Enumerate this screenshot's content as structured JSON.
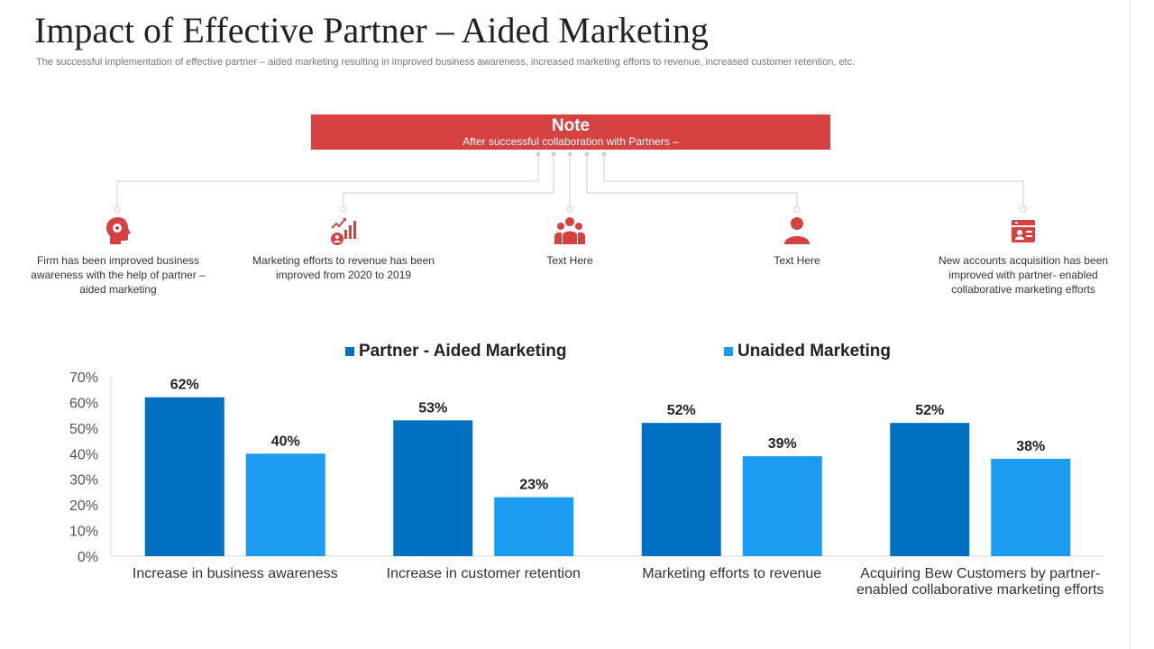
{
  "header": {
    "title": "Impact of Effective Partner – Aided Marketing",
    "subtitle": "The successful implementation of effective partner – aided marketing resulting in improved business awareness, increased marketing efforts to revenue, increased customer retention, etc."
  },
  "note": {
    "title": "Note",
    "text": "After successful collaboration with Partners –"
  },
  "features": [
    {
      "icon": "head-gear-icon",
      "text": "Firm has been improved  business awareness  with the help of partner – aided marketing"
    },
    {
      "icon": "growth-chart-icon",
      "text": "Marketing efforts to revenue  has been improved  from 2020 to 2019"
    },
    {
      "icon": "team-icon",
      "text": "Text Here"
    },
    {
      "icon": "person-icon",
      "text": "Text Here"
    },
    {
      "icon": "id-card-icon",
      "text": "New accounts acquisition has been improved  with partner- enabled collaborative  marketing efforts"
    }
  ],
  "colors": {
    "accent_red": "#d64242",
    "partner_blue": "#0070c0",
    "unaided_blue": "#1b9cf0"
  },
  "chart_data": {
    "type": "bar",
    "categories": [
      "Increase in business awareness",
      "Increase in customer retention",
      "Marketing efforts to revenue",
      "Acquiring Bew Customers by partner-enabled collaborative marketing efforts"
    ],
    "category_lines": [
      [
        "Increase in business awareness"
      ],
      [
        "Increase in customer retention"
      ],
      [
        "Marketing efforts to revenue"
      ],
      [
        "Acquiring Bew Customers by partner-",
        "enabled collaborative marketing efforts"
      ]
    ],
    "series": [
      {
        "name": "Partner - Aided Marketing",
        "values": [
          62,
          53,
          52,
          52
        ],
        "labels": [
          "62%",
          "53%",
          "52%",
          "52%"
        ],
        "color": "#0070c0"
      },
      {
        "name": "Unaided Marketing",
        "values": [
          40,
          23,
          39,
          38
        ],
        "labels": [
          "40%",
          "23%",
          "39%",
          "38%"
        ],
        "color": "#1b9cf0"
      }
    ],
    "yticks": [
      "0%",
      "10%",
      "20%",
      "30%",
      "40%",
      "50%",
      "60%",
      "70%"
    ],
    "ylim": [
      0,
      70
    ],
    "grid": false,
    "legend": "top"
  }
}
